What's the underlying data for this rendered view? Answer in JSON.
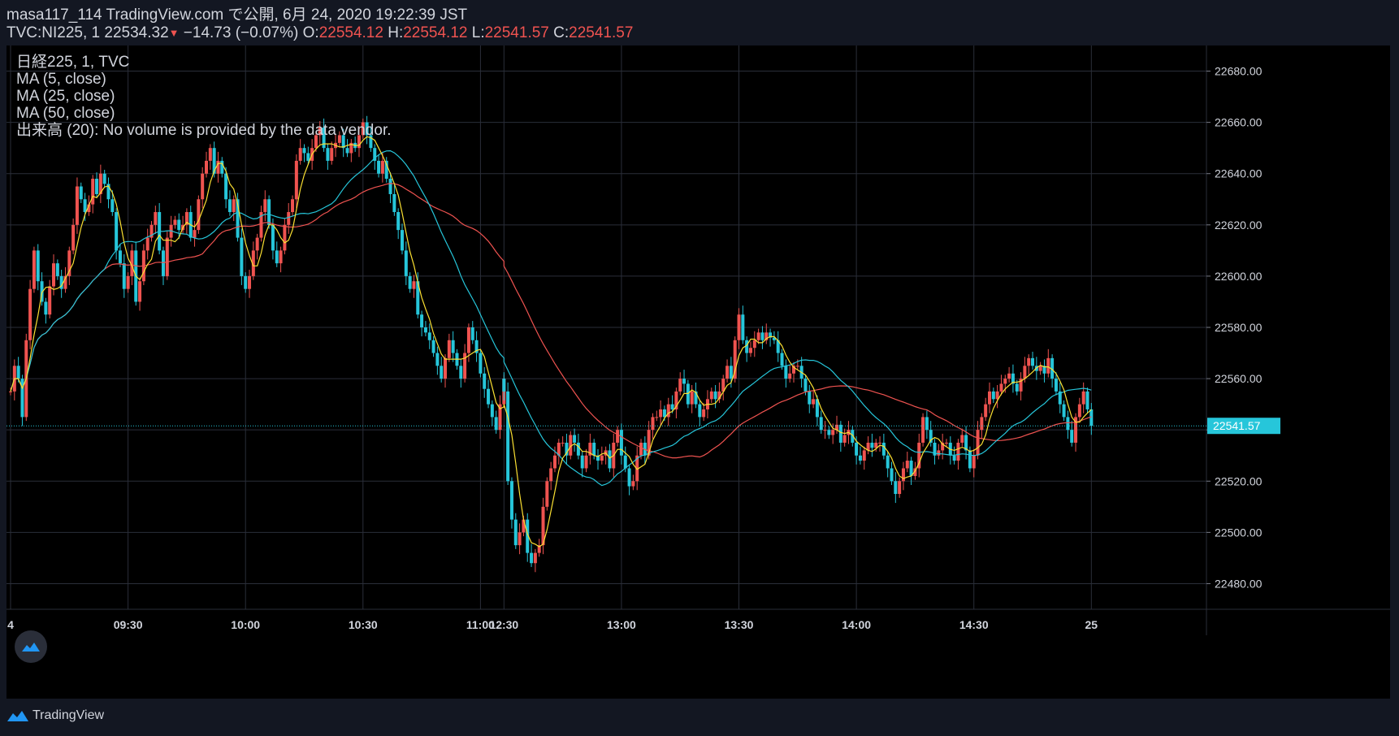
{
  "header": {
    "line1": "masa117_114 TradingView.com で公開, 6月 24, 2020 19:22:39 JST",
    "symbol_prefix": "TVC:NI225, 1 22534.32",
    "down_arrow": "▼",
    "change": "−14.73 (−0.07%)",
    "o_label": "O:",
    "o_value": "22554.12",
    "h_label": "H:",
    "h_value": "22554.12",
    "l_label": "L:",
    "l_value": "22541.57",
    "c_label": "C:",
    "c_value": "22541.57"
  },
  "legend": {
    "line1": "日経225, 1, TVC",
    "line2": "MA (5, close)",
    "line3": "MA (25, close)",
    "line4": "MA (50, close)",
    "line5": "出来高 (20): No volume is provided by the data vendor."
  },
  "footer": {
    "brand": "TradingView"
  },
  "colors": {
    "up": "#ef5350",
    "down": "#26c6da",
    "ma5": "#fbe032",
    "ma25": "#26c6da",
    "ma50": "#ef5350",
    "grid": "#2a2e39",
    "background": "#000000"
  },
  "chart_data": {
    "type": "candlestick",
    "symbol": "TVC:NI225",
    "interval": "1",
    "ylim": [
      22470,
      22690
    ],
    "y_ticks": [
      "22680.00",
      "22660.00",
      "22640.00",
      "22620.00",
      "22600.00",
      "22580.00",
      "22560.00",
      "22540.00",
      "22520.00",
      "22500.00",
      "22480.00"
    ],
    "x_ticks": [
      {
        "label": "4",
        "time": "09:00"
      },
      {
        "label": "09:30",
        "time": "09:30"
      },
      {
        "label": "10:00",
        "time": "10:00"
      },
      {
        "label": "10:30",
        "time": "10:30"
      },
      {
        "label": "11:00",
        "time": "11:00"
      },
      {
        "label": "12:30",
        "time": "12:30"
      },
      {
        "label": "13:00",
        "time": "13:00"
      },
      {
        "label": "13:30",
        "time": "13:30"
      },
      {
        "label": "14:00",
        "time": "14:00"
      },
      {
        "label": "14:30",
        "time": "14:30"
      },
      {
        "label": "25",
        "time": "15:00"
      }
    ],
    "last_price_label": "22541.57",
    "last_price": 22541.57,
    "price_path": [
      [
        "09:00",
        22555
      ],
      [
        "09:01",
        22565
      ],
      [
        "09:02",
        22560
      ],
      [
        "09:03",
        22545
      ],
      [
        "09:04",
        22575
      ],
      [
        "09:05",
        22595
      ],
      [
        "09:06",
        22610
      ],
      [
        "09:07",
        22598
      ],
      [
        "09:08",
        22590
      ],
      [
        "09:09",
        22585
      ],
      [
        "09:10",
        22596
      ],
      [
        "09:11",
        22605
      ],
      [
        "09:12",
        22600
      ],
      [
        "09:13",
        22595
      ],
      [
        "09:14",
        22600
      ],
      [
        "09:15",
        22610
      ],
      [
        "09:16",
        22620
      ],
      [
        "09:17",
        22635
      ],
      [
        "09:18",
        22630
      ],
      [
        "09:19",
        22625
      ],
      [
        "09:20",
        22628
      ],
      [
        "09:21",
        22638
      ],
      [
        "09:22",
        22632
      ],
      [
        "09:23",
        22640
      ],
      [
        "09:24",
        22636
      ],
      [
        "09:25",
        22630
      ],
      [
        "09:26",
        22625
      ],
      [
        "09:27",
        22610
      ],
      [
        "09:28",
        22605
      ],
      [
        "09:29",
        22595
      ],
      [
        "09:30",
        22600
      ],
      [
        "09:31",
        22610
      ],
      [
        "09:32",
        22590
      ],
      [
        "09:33",
        22598
      ],
      [
        "09:34",
        22610
      ],
      [
        "09:35",
        22615
      ],
      [
        "09:36",
        22620
      ],
      [
        "09:37",
        22625
      ],
      [
        "09:38",
        22610
      ],
      [
        "09:39",
        22600
      ],
      [
        "09:40",
        22615
      ],
      [
        "09:41",
        22620
      ],
      [
        "09:42",
        22622
      ],
      [
        "09:43",
        22618
      ],
      [
        "09:44",
        22620
      ],
      [
        "09:45",
        22625
      ],
      [
        "09:46",
        22615
      ],
      [
        "09:47",
        22618
      ],
      [
        "09:48",
        22630
      ],
      [
        "09:49",
        22640
      ],
      [
        "09:50",
        22645
      ],
      [
        "09:51",
        22650
      ],
      [
        "09:52",
        22640
      ],
      [
        "09:53",
        22645
      ],
      [
        "09:54",
        22640
      ],
      [
        "09:55",
        22630
      ],
      [
        "09:56",
        22625
      ],
      [
        "09:57",
        22630
      ],
      [
        "09:58",
        22615
      ],
      [
        "09:59",
        22600
      ],
      [
        "10:00",
        22595
      ],
      [
        "10:01",
        22600
      ],
      [
        "10:02",
        22610
      ],
      [
        "10:03",
        22615
      ],
      [
        "10:04",
        22625
      ],
      [
        "10:05",
        22630
      ],
      [
        "10:06",
        22620
      ],
      [
        "10:07",
        22610
      ],
      [
        "10:08",
        22605
      ],
      [
        "10:09",
        22610
      ],
      [
        "10:10",
        22620
      ],
      [
        "10:11",
        22625
      ],
      [
        "10:12",
        22630
      ],
      [
        "10:13",
        22645
      ],
      [
        "10:14",
        22650
      ],
      [
        "10:15",
        22648
      ],
      [
        "10:16",
        22645
      ],
      [
        "10:17",
        22650
      ],
      [
        "10:18",
        22655
      ],
      [
        "10:19",
        22658
      ],
      [
        "10:20",
        22650
      ],
      [
        "10:21",
        22645
      ],
      [
        "10:22",
        22650
      ],
      [
        "10:23",
        22652
      ],
      [
        "10:24",
        22655
      ],
      [
        "10:25",
        22650
      ],
      [
        "10:26",
        22648
      ],
      [
        "10:27",
        22652
      ],
      [
        "10:28",
        22650
      ],
      [
        "10:29",
        22655
      ],
      [
        "10:30",
        22660
      ],
      [
        "10:31",
        22655
      ],
      [
        "10:32",
        22650
      ],
      [
        "10:33",
        22645
      ],
      [
        "10:34",
        22640
      ],
      [
        "10:35",
        22645
      ],
      [
        "10:36",
        22638
      ],
      [
        "10:37",
        22632
      ],
      [
        "10:38",
        22625
      ],
      [
        "10:39",
        22618
      ],
      [
        "10:40",
        22610
      ],
      [
        "10:41",
        22600
      ],
      [
        "10:42",
        22595
      ],
      [
        "10:43",
        22598
      ],
      [
        "10:44",
        22585
      ],
      [
        "10:45",
        22580
      ],
      [
        "10:46",
        22578
      ],
      [
        "10:47",
        22575
      ],
      [
        "10:48",
        22570
      ],
      [
        "10:49",
        22565
      ],
      [
        "10:50",
        22560
      ],
      [
        "10:51",
        22568
      ],
      [
        "10:52",
        22575
      ],
      [
        "10:53",
        22570
      ],
      [
        "10:54",
        22565
      ],
      [
        "10:55",
        22560
      ],
      [
        "10:56",
        22570
      ],
      [
        "10:57",
        22580
      ],
      [
        "10:58",
        22575
      ],
      [
        "10:59",
        22570
      ],
      [
        "11:00",
        22562
      ],
      [
        "11:01",
        22556
      ],
      [
        "11:02",
        22550
      ],
      [
        "11:03",
        22545
      ],
      [
        "11:04",
        22540
      ],
      [
        "11:05",
        22550
      ],
      [
        "11:06",
        22560
      ],
      [
        "12:30",
        22555
      ],
      [
        "12:31",
        22520
      ],
      [
        "12:32",
        22505
      ],
      [
        "12:33",
        22495
      ],
      [
        "12:34",
        22500
      ],
      [
        "12:35",
        22505
      ],
      [
        "12:36",
        22492
      ],
      [
        "12:37",
        22488
      ],
      [
        "12:38",
        22492
      ],
      [
        "12:39",
        22495
      ],
      [
        "12:40",
        22510
      ],
      [
        "12:41",
        22520
      ],
      [
        "12:42",
        22525
      ],
      [
        "12:43",
        22530
      ],
      [
        "12:44",
        22535
      ],
      [
        "12:45",
        22535
      ],
      [
        "12:46",
        22530
      ],
      [
        "12:47",
        22538
      ],
      [
        "12:48",
        22535
      ],
      [
        "12:49",
        22530
      ],
      [
        "12:50",
        22525
      ],
      [
        "12:51",
        22530
      ],
      [
        "12:52",
        22535
      ],
      [
        "12:53",
        22530
      ],
      [
        "12:54",
        22528
      ],
      [
        "12:55",
        22530
      ],
      [
        "12:56",
        22532
      ],
      [
        "12:57",
        22525
      ],
      [
        "12:58",
        22535
      ],
      [
        "12:59",
        22540
      ],
      [
        "13:00",
        22530
      ],
      [
        "13:01",
        22525
      ],
      [
        "13:02",
        22518
      ],
      [
        "13:03",
        22520
      ],
      [
        "13:04",
        22530
      ],
      [
        "13:05",
        22535
      ],
      [
        "13:06",
        22530
      ],
      [
        "13:07",
        22540
      ],
      [
        "13:08",
        22545
      ],
      [
        "13:09",
        22545
      ],
      [
        "13:10",
        22548
      ],
      [
        "13:11",
        22545
      ],
      [
        "13:12",
        22550
      ],
      [
        "13:13",
        22548
      ],
      [
        "13:14",
        22555
      ],
      [
        "13:15",
        22560
      ],
      [
        "13:16",
        22558
      ],
      [
        "13:17",
        22550
      ],
      [
        "13:18",
        22555
      ],
      [
        "13:19",
        22550
      ],
      [
        "13:20",
        22545
      ],
      [
        "13:21",
        22548
      ],
      [
        "13:22",
        22552
      ],
      [
        "13:23",
        22555
      ],
      [
        "13:24",
        22552
      ],
      [
        "13:25",
        22555
      ],
      [
        "13:26",
        22560
      ],
      [
        "13:27",
        22565
      ],
      [
        "13:28",
        22560
      ],
      [
        "13:29",
        22575
      ],
      [
        "13:30",
        22585
      ],
      [
        "13:31",
        22575
      ],
      [
        "13:32",
        22570
      ],
      [
        "13:33",
        22572
      ],
      [
        "13:34",
        22575
      ],
      [
        "13:35",
        22578
      ],
      [
        "13:36",
        22575
      ],
      [
        "13:37",
        22578
      ],
      [
        "13:38",
        22576
      ],
      [
        "13:39",
        22575
      ],
      [
        "13:40",
        22570
      ],
      [
        "13:41",
        22565
      ],
      [
        "13:42",
        22560
      ],
      [
        "13:43",
        22562
      ],
      [
        "13:44",
        22565
      ],
      [
        "13:45",
        22565
      ],
      [
        "13:46",
        22560
      ],
      [
        "13:47",
        22555
      ],
      [
        "13:48",
        22550
      ],
      [
        "13:49",
        22552
      ],
      [
        "13:50",
        22545
      ],
      [
        "13:51",
        22540
      ],
      [
        "13:52",
        22540
      ],
      [
        "13:53",
        22538
      ],
      [
        "13:54",
        22540
      ],
      [
        "13:55",
        22542
      ],
      [
        "13:56",
        22535
      ],
      [
        "13:57",
        22538
      ],
      [
        "13:58",
        22540
      ],
      [
        "13:59",
        22535
      ],
      [
        "14:00",
        22530
      ],
      [
        "14:01",
        22528
      ],
      [
        "14:02",
        22532
      ],
      [
        "14:03",
        22535
      ],
      [
        "14:04",
        22533
      ],
      [
        "14:05",
        22535
      ],
      [
        "14:06",
        22535
      ],
      [
        "14:07",
        22530
      ],
      [
        "14:08",
        22525
      ],
      [
        "14:09",
        22520
      ],
      [
        "14:10",
        22515
      ],
      [
        "14:11",
        22520
      ],
      [
        "14:12",
        22525
      ],
      [
        "14:13",
        22528
      ],
      [
        "14:14",
        22522
      ],
      [
        "14:15",
        22525
      ],
      [
        "14:16",
        22535
      ],
      [
        "14:17",
        22545
      ],
      [
        "14:18",
        22540
      ],
      [
        "14:19",
        22535
      ],
      [
        "14:20",
        22530
      ],
      [
        "14:21",
        22532
      ],
      [
        "14:22",
        22535
      ],
      [
        "14:23",
        22535
      ],
      [
        "14:24",
        22530
      ],
      [
        "14:25",
        22528
      ],
      [
        "14:26",
        22535
      ],
      [
        "14:27",
        22538
      ],
      [
        "14:28",
        22532
      ],
      [
        "14:29",
        22525
      ],
      [
        "14:30",
        22530
      ],
      [
        "14:31",
        22540
      ],
      [
        "14:32",
        22545
      ],
      [
        "14:33",
        22550
      ],
      [
        "14:34",
        22555
      ],
      [
        "14:35",
        22552
      ],
      [
        "14:36",
        22555
      ],
      [
        "14:37",
        22558
      ],
      [
        "14:38",
        22560
      ],
      [
        "14:39",
        22562
      ],
      [
        "14:40",
        22558
      ],
      [
        "14:41",
        22555
      ],
      [
        "14:42",
        22560
      ],
      [
        "14:43",
        22565
      ],
      [
        "14:44",
        22568
      ],
      [
        "14:45",
        22565
      ],
      [
        "14:46",
        22563
      ],
      [
        "14:47",
        22565
      ],
      [
        "14:48",
        22562
      ],
      [
        "14:49",
        22568
      ],
      [
        "14:50",
        22560
      ],
      [
        "14:51",
        22555
      ],
      [
        "14:52",
        22550
      ],
      [
        "14:53",
        22545
      ],
      [
        "14:54",
        22540
      ],
      [
        "14:55",
        22535
      ],
      [
        "14:56",
        22545
      ],
      [
        "14:57",
        22550
      ],
      [
        "14:58",
        22555
      ],
      [
        "14:59",
        22548
      ],
      [
        "15:00",
        22541.57
      ]
    ]
  }
}
